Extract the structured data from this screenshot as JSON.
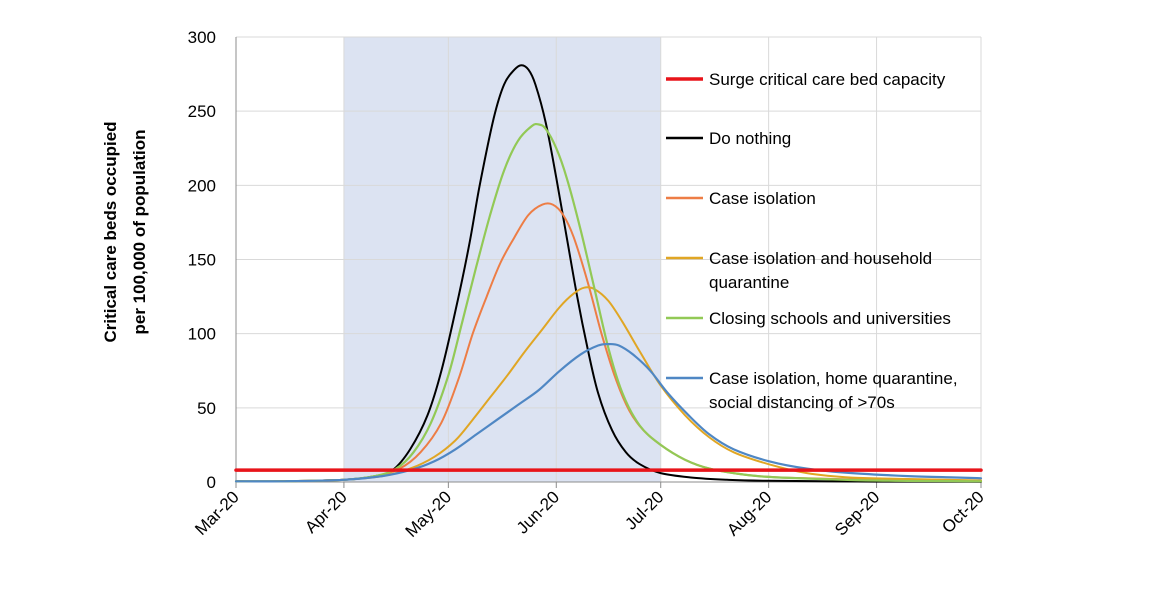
{
  "chart_data": {
    "type": "line",
    "title": "",
    "xlabel": "",
    "ylabel": [
      "Critical care beds occupied",
      "per 100,000 of population"
    ],
    "ylim": [
      0,
      300
    ],
    "yticks": [
      0,
      50,
      100,
      150,
      200,
      250,
      300
    ],
    "xlim": [
      "2020-03-01",
      "2020-10-01"
    ],
    "xticks": [
      {
        "date": "2020-03-01",
        "label": "Mar-20"
      },
      {
        "date": "2020-04-01",
        "label": "Apr-20"
      },
      {
        "date": "2020-05-01",
        "label": "May-20"
      },
      {
        "date": "2020-06-01",
        "label": "Jun-20"
      },
      {
        "date": "2020-07-01",
        "label": "Jul-20"
      },
      {
        "date": "2020-08-01",
        "label": "Aug-20"
      },
      {
        "date": "2020-09-01",
        "label": "Sep-20"
      },
      {
        "date": "2020-10-01",
        "label": "Oct-20"
      }
    ],
    "grid": true,
    "shaded_period": [
      "2020-04-01",
      "2020-07-01"
    ],
    "shade_color": "#dce3f2",
    "legend_position": "right",
    "series": [
      {
        "name": "Surge critical care bed capacity",
        "color": "#e8141a",
        "width": 3.5,
        "points": [
          [
            "2020-03-01",
            8
          ],
          [
            "2020-10-01",
            8
          ]
        ]
      },
      {
        "name": "Do nothing",
        "color": "#000000",
        "width": 2,
        "points": [
          [
            "2020-03-01",
            0.5
          ],
          [
            "2020-03-15",
            0.5
          ],
          [
            "2020-04-01",
            1.5
          ],
          [
            "2020-04-10",
            4
          ],
          [
            "2020-04-15",
            8
          ],
          [
            "2020-04-20",
            22
          ],
          [
            "2020-04-25",
            45
          ],
          [
            "2020-04-29",
            75
          ],
          [
            "2020-05-03",
            115
          ],
          [
            "2020-05-07",
            160
          ],
          [
            "2020-05-10",
            200
          ],
          [
            "2020-05-14",
            245
          ],
          [
            "2020-05-17",
            268
          ],
          [
            "2020-05-20",
            278
          ],
          [
            "2020-05-22",
            281
          ],
          [
            "2020-05-24",
            278
          ],
          [
            "2020-05-26",
            268
          ],
          [
            "2020-05-29",
            242
          ],
          [
            "2020-06-01",
            205
          ],
          [
            "2020-06-04",
            165
          ],
          [
            "2020-06-07",
            125
          ],
          [
            "2020-06-10",
            90
          ],
          [
            "2020-06-13",
            60
          ],
          [
            "2020-06-17",
            35
          ],
          [
            "2020-06-21",
            20
          ],
          [
            "2020-06-25",
            12
          ],
          [
            "2020-07-01",
            6
          ],
          [
            "2020-07-10",
            3
          ],
          [
            "2020-07-20",
            1.5
          ],
          [
            "2020-08-01",
            0.8
          ],
          [
            "2020-09-01",
            0.3
          ],
          [
            "2020-10-01",
            0.2
          ]
        ]
      },
      {
        "name": "Case isolation",
        "color": "#ed7d45",
        "width": 2,
        "points": [
          [
            "2020-03-01",
            0.5
          ],
          [
            "2020-03-15",
            0.5
          ],
          [
            "2020-04-01",
            1.5
          ],
          [
            "2020-04-10",
            4
          ],
          [
            "2020-04-17",
            9
          ],
          [
            "2020-04-23",
            20
          ],
          [
            "2020-04-29",
            40
          ],
          [
            "2020-05-04",
            70
          ],
          [
            "2020-05-08",
            100
          ],
          [
            "2020-05-12",
            125
          ],
          [
            "2020-05-16",
            148
          ],
          [
            "2020-05-20",
            165
          ],
          [
            "2020-05-24",
            180
          ],
          [
            "2020-05-28",
            187
          ],
          [
            "2020-05-31",
            187
          ],
          [
            "2020-06-03",
            180
          ],
          [
            "2020-06-06",
            165
          ],
          [
            "2020-06-10",
            135
          ],
          [
            "2020-06-14",
            100
          ],
          [
            "2020-06-18",
            70
          ],
          [
            "2020-06-22",
            48
          ],
          [
            "2020-06-26",
            35
          ],
          [
            "2020-07-01",
            25
          ],
          [
            "2020-07-08",
            15
          ],
          [
            "2020-07-15",
            9
          ],
          [
            "2020-07-25",
            5
          ],
          [
            "2020-08-05",
            3
          ],
          [
            "2020-09-01",
            1.5
          ],
          [
            "2020-10-01",
            1
          ]
        ]
      },
      {
        "name": "Case isolation and household quarantine",
        "color": "#e0a624",
        "width": 2,
        "points": [
          [
            "2020-03-01",
            0.5
          ],
          [
            "2020-03-15",
            0.5
          ],
          [
            "2020-04-01",
            1.5
          ],
          [
            "2020-04-12",
            4
          ],
          [
            "2020-04-20",
            9
          ],
          [
            "2020-04-27",
            17
          ],
          [
            "2020-05-03",
            28
          ],
          [
            "2020-05-08",
            42
          ],
          [
            "2020-05-13",
            57
          ],
          [
            "2020-05-18",
            72
          ],
          [
            "2020-05-23",
            88
          ],
          [
            "2020-05-28",
            103
          ],
          [
            "2020-06-02",
            118
          ],
          [
            "2020-06-06",
            127
          ],
          [
            "2020-06-09",
            131
          ],
          [
            "2020-06-12",
            130
          ],
          [
            "2020-06-16",
            122
          ],
          [
            "2020-06-20",
            108
          ],
          [
            "2020-06-25",
            88
          ],
          [
            "2020-07-01",
            65
          ],
          [
            "2020-07-08",
            45
          ],
          [
            "2020-07-15",
            30
          ],
          [
            "2020-07-22",
            20
          ],
          [
            "2020-08-01",
            12
          ],
          [
            "2020-08-12",
            6
          ],
          [
            "2020-08-25",
            3
          ],
          [
            "2020-09-10",
            2
          ],
          [
            "2020-10-01",
            1
          ]
        ]
      },
      {
        "name": "Closing schools and universities",
        "color": "#92c956",
        "width": 2.2,
        "points": [
          [
            "2020-03-01",
            0.5
          ],
          [
            "2020-03-15",
            0.5
          ],
          [
            "2020-04-01",
            1.5
          ],
          [
            "2020-04-10",
            4
          ],
          [
            "2020-04-16",
            9
          ],
          [
            "2020-04-21",
            20
          ],
          [
            "2020-04-26",
            40
          ],
          [
            "2020-05-01",
            72
          ],
          [
            "2020-05-05",
            108
          ],
          [
            "2020-05-09",
            145
          ],
          [
            "2020-05-13",
            180
          ],
          [
            "2020-05-17",
            210
          ],
          [
            "2020-05-21",
            230
          ],
          [
            "2020-05-25",
            240
          ],
          [
            "2020-05-27",
            241
          ],
          [
            "2020-05-29",
            238
          ],
          [
            "2020-06-01",
            225
          ],
          [
            "2020-06-04",
            205
          ],
          [
            "2020-06-08",
            170
          ],
          [
            "2020-06-12",
            130
          ],
          [
            "2020-06-16",
            90
          ],
          [
            "2020-06-20",
            60
          ],
          [
            "2020-06-25",
            38
          ],
          [
            "2020-07-01",
            25
          ],
          [
            "2020-07-08",
            15
          ],
          [
            "2020-07-15",
            9
          ],
          [
            "2020-07-25",
            5
          ],
          [
            "2020-08-05",
            3
          ],
          [
            "2020-09-01",
            1
          ],
          [
            "2020-10-01",
            0.5
          ]
        ]
      },
      {
        "name": "Case isolation, home quarantine, social distancing of >70s",
        "color": "#4f87c4",
        "width": 2.2,
        "points": [
          [
            "2020-03-01",
            0.5
          ],
          [
            "2020-03-15",
            0.5
          ],
          [
            "2020-04-01",
            1.5
          ],
          [
            "2020-04-12",
            4
          ],
          [
            "2020-04-20",
            8
          ],
          [
            "2020-04-27",
            14
          ],
          [
            "2020-05-03",
            22
          ],
          [
            "2020-05-09",
            32
          ],
          [
            "2020-05-15",
            42
          ],
          [
            "2020-05-21",
            52
          ],
          [
            "2020-05-27",
            62
          ],
          [
            "2020-06-02",
            75
          ],
          [
            "2020-06-08",
            86
          ],
          [
            "2020-06-13",
            92
          ],
          [
            "2020-06-16",
            93
          ],
          [
            "2020-06-19",
            92
          ],
          [
            "2020-06-23",
            86
          ],
          [
            "2020-06-28",
            75
          ],
          [
            "2020-07-03",
            60
          ],
          [
            "2020-07-09",
            45
          ],
          [
            "2020-07-15",
            32
          ],
          [
            "2020-07-22",
            22
          ],
          [
            "2020-08-01",
            14
          ],
          [
            "2020-08-12",
            9
          ],
          [
            "2020-08-25",
            6
          ],
          [
            "2020-09-10",
            4
          ],
          [
            "2020-09-25",
            3
          ],
          [
            "2020-10-01",
            2.5
          ]
        ]
      }
    ],
    "legend": [
      {
        "lines": [
          "Surge critical care bed capacity"
        ]
      },
      {
        "lines": [
          "Do nothing"
        ]
      },
      {
        "lines": [
          "Case isolation"
        ]
      },
      {
        "lines": [
          "Case isolation and household",
          "quarantine"
        ]
      },
      {
        "lines": [
          "Closing schools and universities"
        ]
      },
      {
        "lines": [
          "Case isolation, home quarantine,",
          "social distancing of >70s"
        ]
      }
    ],
    "colors": {
      "grid": "#d9d9d9",
      "axis": "#8c8c8c"
    }
  }
}
